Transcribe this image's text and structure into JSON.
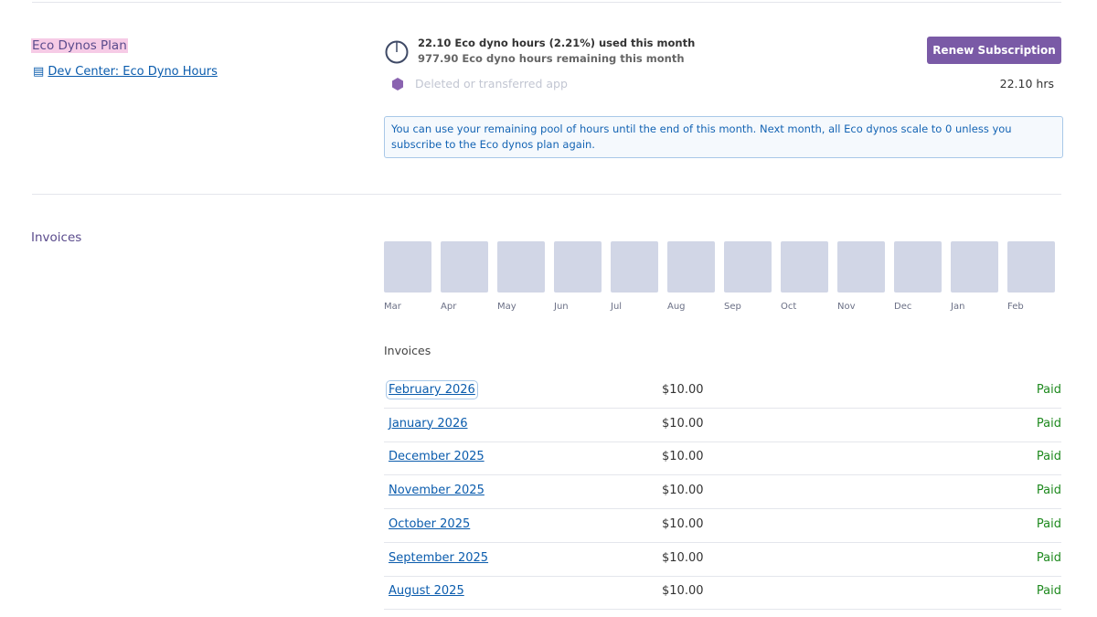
{
  "plan": {
    "title": "Eco Dynos Plan",
    "link": "Dev Center: Eco Dyno Hours",
    "usage_line": "22.10 Eco dyno hours (2.21%) used this month",
    "remaining_line": "977.90 Eco dyno hours remaining this month",
    "app": "Deleted or transferred app",
    "app_hours": "22.10 hrs",
    "button": "Renew Subscription",
    "notice": "You can use your remaining pool of hours until the end of this month. Next month, all Eco dynos scale to 0 unless you subscribe to the Eco dynos plan again."
  },
  "invoices": {
    "section_title": "Invoices",
    "months": [
      "Mar",
      "Apr",
      "May",
      "Jun",
      "Jul",
      "Aug",
      "Sep",
      "Oct",
      "Nov",
      "Dec",
      "Jan",
      "Feb"
    ],
    "list_title": "Invoices",
    "rows": [
      {
        "period": "February 2026",
        "amount": "$10.00",
        "status": "Paid"
      },
      {
        "period": "January 2026",
        "amount": "$10.00",
        "status": "Paid"
      },
      {
        "period": "December 2025",
        "amount": "$10.00",
        "status": "Paid"
      },
      {
        "period": "November 2025",
        "amount": "$10.00",
        "status": "Paid"
      },
      {
        "period": "October 2025",
        "amount": "$10.00",
        "status": "Paid"
      },
      {
        "period": "September 2025",
        "amount": "$10.00",
        "status": "Paid"
      },
      {
        "period": "August 2025",
        "amount": "$10.00",
        "status": "Paid"
      }
    ]
  }
}
